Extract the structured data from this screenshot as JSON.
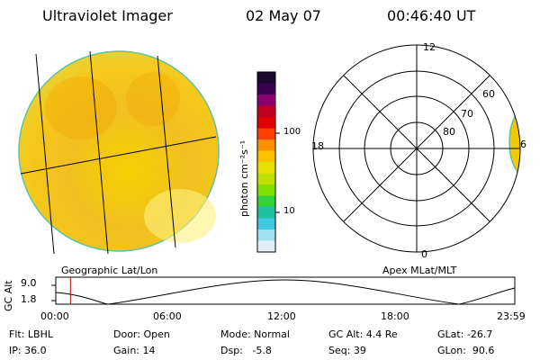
{
  "header": {
    "instrument": "Ultraviolet Imager",
    "date": "02 May 07",
    "time": "00:46:40 UT"
  },
  "panels": {
    "left_label": "Geographic Lat/Lon",
    "right_label": "Apex MLat/MLT"
  },
  "polar_plot": {
    "mlt_labels": {
      "top": "12",
      "left": "18",
      "bottom": "0",
      "right": "6"
    },
    "lat_labels": [
      "60",
      "70",
      "80"
    ]
  },
  "colorbar": {
    "unit_text": "photon cm⁻²s⁻¹",
    "ticks": [
      "100",
      "10"
    ],
    "colors": [
      "#1a0a2e",
      "#3a0050",
      "#8a0070",
      "#c00020",
      "#e00000",
      "#ff4000",
      "#ff9000",
      "#ffc000",
      "#e8e000",
      "#c0e000",
      "#80e000",
      "#30d040",
      "#20c0a0",
      "#40c8e0",
      "#a0e0f0",
      "#e0f0f8"
    ]
  },
  "altitude_strip": {
    "axis_label": "GC Alt",
    "ticks": [
      "9.0",
      "1.8"
    ],
    "time_ticks": [
      "00:00",
      "06:00",
      "12:00",
      "18:00",
      "23:59"
    ],
    "current_time_fraction": 0.032
  },
  "info": {
    "flt": "Flt: LBHL",
    "door": "Door: Open",
    "mode": "Mode: Normal",
    "gc_alt": "GC Alt: 4.4 Re",
    "glat": "GLat: -26.7",
    "ip": "IP: 36.0",
    "gain": "Gain: 14",
    "dsp": "Dsp:   -5.8",
    "seq": "Seq: 39",
    "glon": "GLon:  90.6"
  }
}
